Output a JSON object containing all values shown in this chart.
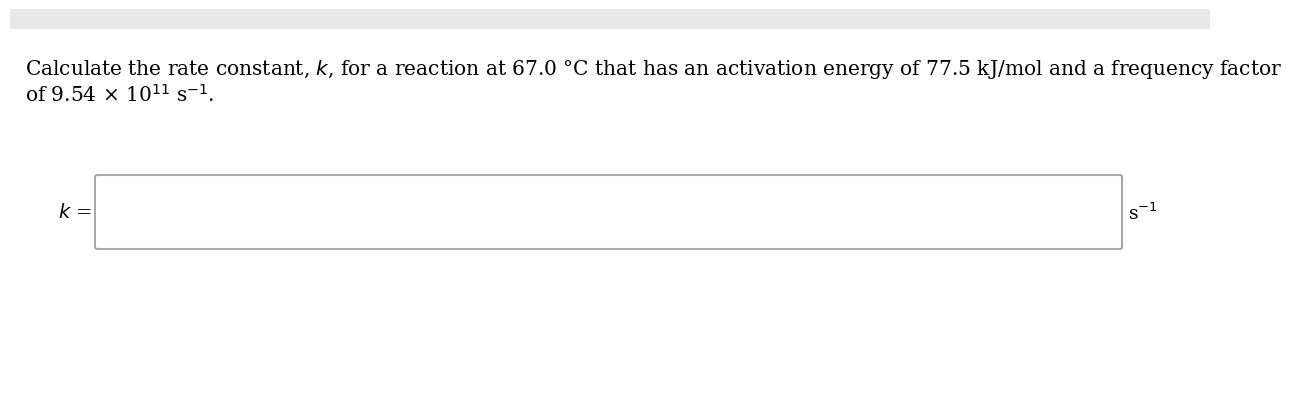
{
  "top_bar_color": "#e8e8e8",
  "background_color": "#ffffff",
  "line1": "Calculate the rate constant, $k$, for a reaction at 67.0 °C that has an activation energy of 77.5 kJ/mol and a frequency factor",
  "line2": "of 9.54 × 10$^{11}$ s$^{-1}$.",
  "k_label": "$k$ =",
  "unit_label": "s$^{-1}$",
  "text_color": "#000000",
  "box_face_color": "#ffffff",
  "box_edge_color": "#aaaaaa",
  "font_size_main": 14.5,
  "font_size_label": 14.0,
  "font_size_unit": 13.5
}
